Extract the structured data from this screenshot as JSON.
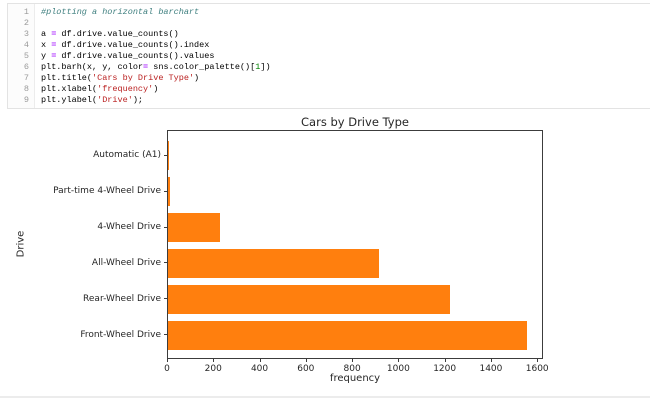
{
  "code_cell": {
    "lines": [
      {
        "num": "1",
        "tokens": [
          {
            "text": "#plotting a horizontal barchart",
            "type": "comment"
          }
        ]
      },
      {
        "num": "2",
        "tokens": []
      },
      {
        "num": "3",
        "tokens": [
          {
            "text": "a ",
            "type": "plain"
          },
          {
            "text": "=",
            "type": "op"
          },
          {
            "text": " df.drive.value_counts()",
            "type": "plain"
          }
        ]
      },
      {
        "num": "4",
        "tokens": [
          {
            "text": "x ",
            "type": "plain"
          },
          {
            "text": "=",
            "type": "op"
          },
          {
            "text": " df.drive.value_counts().index",
            "type": "plain"
          }
        ]
      },
      {
        "num": "5",
        "tokens": [
          {
            "text": "y ",
            "type": "plain"
          },
          {
            "text": "=",
            "type": "op"
          },
          {
            "text": " df.drive.value_counts().values",
            "type": "plain"
          }
        ]
      },
      {
        "num": "6",
        "tokens": [
          {
            "text": "plt.barh(x, y, color",
            "type": "plain"
          },
          {
            "text": "=",
            "type": "op"
          },
          {
            "text": " sns.color_palette()[",
            "type": "plain"
          },
          {
            "text": "1",
            "type": "number"
          },
          {
            "text": "])",
            "type": "plain"
          }
        ]
      },
      {
        "num": "7",
        "tokens": [
          {
            "text": "plt.title(",
            "type": "plain"
          },
          {
            "text": "'Cars by Drive Type'",
            "type": "string"
          },
          {
            "text": ")",
            "type": "plain"
          }
        ]
      },
      {
        "num": "8",
        "tokens": [
          {
            "text": "plt.xlabel(",
            "type": "plain"
          },
          {
            "text": "'frequency'",
            "type": "string"
          },
          {
            "text": ")",
            "type": "plain"
          }
        ]
      },
      {
        "num": "9",
        "tokens": [
          {
            "text": "plt.ylabel(",
            "type": "plain"
          },
          {
            "text": "'Drive'",
            "type": "string"
          },
          {
            "text": ");",
            "type": "plain"
          }
        ]
      }
    ]
  },
  "chart_data": {
    "type": "bar",
    "orientation": "horizontal",
    "title": "Cars by Drive Type",
    "xlabel": "frequency",
    "ylabel": "Drive",
    "categories": [
      "Automatic (A1)",
      "Part-time 4-Wheel Drive",
      "4-Wheel Drive",
      "All-Wheel Drive",
      "Rear-Wheel Drive",
      "Front-Wheel Drive"
    ],
    "values": [
      2,
      10,
      225,
      910,
      1220,
      1550
    ],
    "x_tick_labels": [
      "0",
      "200",
      "400",
      "600",
      "800",
      "1000",
      "1200",
      "1400",
      "1600"
    ],
    "x_ticks": [
      0,
      200,
      400,
      600,
      800,
      1000,
      1200,
      1400,
      1600
    ],
    "xlim": [
      0,
      1625
    ],
    "grid": false,
    "legend": false,
    "bar_color": "#ff7f0e"
  },
  "colors": {
    "bar": "#ff7f0e",
    "syntax_comment": "#408080",
    "syntax_operator": "#AA22FF",
    "syntax_string": "#BA2121",
    "syntax_number": "#008000",
    "axis_text": "#262626"
  }
}
